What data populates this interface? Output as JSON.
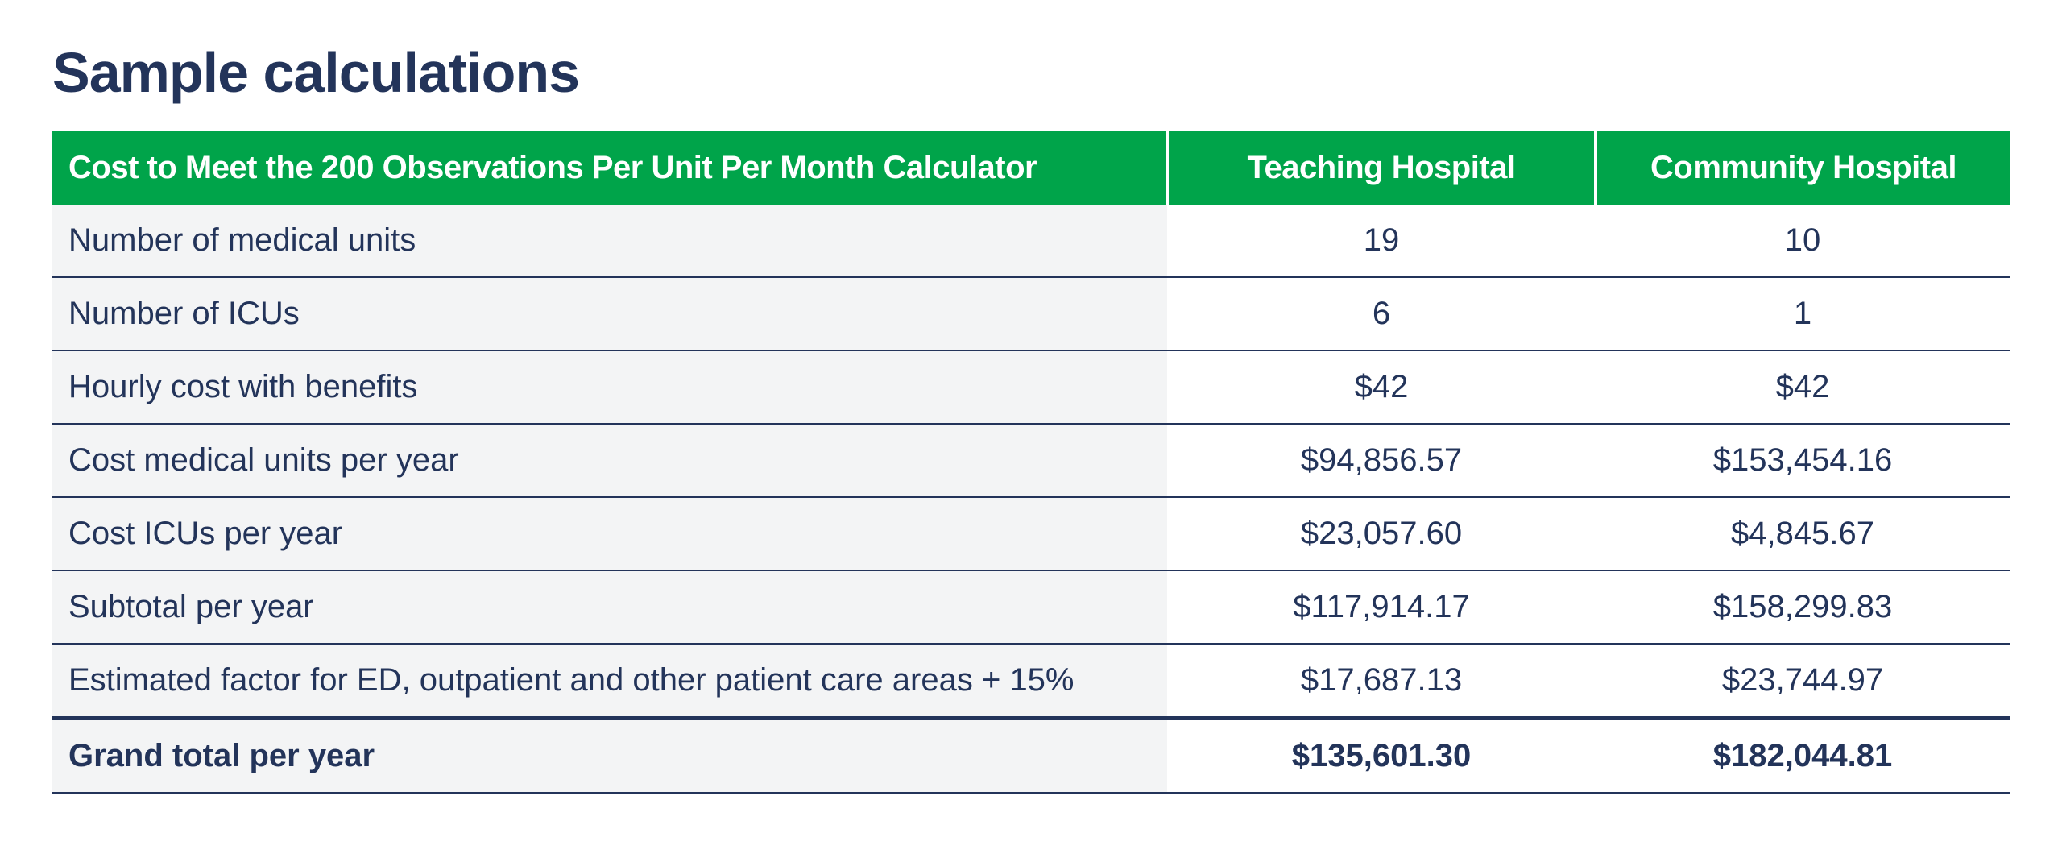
{
  "title": "Sample calculations",
  "table": {
    "headers": [
      "Cost to Meet the 200 Observations Per Unit Per Month Calculator",
      "Teaching Hospital",
      "Community Hospital"
    ],
    "rows": [
      {
        "label": "Number of medical units",
        "teaching": "19",
        "community": "10"
      },
      {
        "label": "Number of ICUs",
        "teaching": "6",
        "community": "1"
      },
      {
        "label": "Hourly cost with benefits",
        "teaching": "$42",
        "community": "$42"
      },
      {
        "label": "Cost medical units per year",
        "teaching": "$94,856.57",
        "community": "$153,454.16"
      },
      {
        "label": "Cost ICUs per year",
        "teaching": "$23,057.60",
        "community": "$4,845.67"
      },
      {
        "label": "Subtotal per year",
        "teaching": "$117,914.17",
        "community": "$158,299.83"
      },
      {
        "label": "Estimated factor for ED, outpatient and other patient care areas + 15%",
        "teaching": "$17,687.13",
        "community": "$23,744.97"
      },
      {
        "label": "Grand total per year",
        "teaching": "$135,601.30",
        "community": "$182,044.81"
      }
    ]
  },
  "colors": {
    "header_bg": "#00a44a",
    "text": "#23345a",
    "label_bg": "#f3f4f5"
  }
}
